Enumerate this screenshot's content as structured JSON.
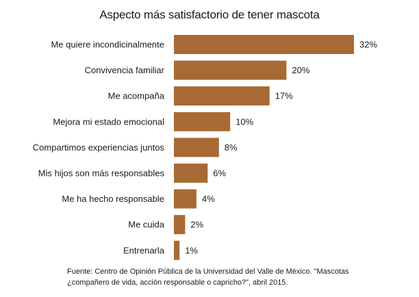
{
  "chart_data": {
    "type": "bar",
    "orientation": "horizontal",
    "title": "Aspecto más satisfactorio de tener mascota",
    "categories": [
      "Me quiere incondicinalmente",
      "Convivencia familiar",
      "Me acompaña",
      "Mejora mi estado emocional",
      "Compartimos experiencias juntos",
      "Mis hijos son más responsables",
      "Me ha hecho responsable",
      "Me cuida",
      "Entrenarla"
    ],
    "values": [
      32,
      20,
      17,
      10,
      8,
      6,
      4,
      2,
      1
    ],
    "value_labels": [
      "32%",
      "20%",
      "17%",
      "10%",
      "8%",
      "6%",
      "4%",
      "2%",
      "1%"
    ],
    "unit": "%",
    "bar_color": "#a86a34",
    "xlim": [
      0,
      32
    ],
    "grid": false,
    "legend": "none"
  },
  "source": {
    "line1": "Fuente: Centro de Opinión  Pública de la Universidad del Valle de México. \"Mascotas",
    "line2": "¿compañero de vida, acción responsable o capricho?\", abril 2015."
  }
}
